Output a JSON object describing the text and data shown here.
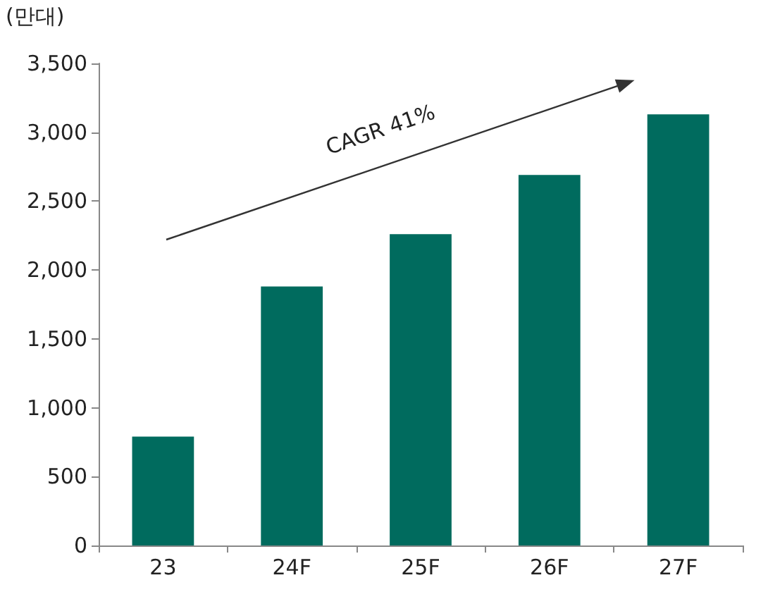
{
  "chart_data": {
    "type": "bar",
    "ylabel": "(만대)",
    "categories": [
      "23",
      "24F",
      "25F",
      "26F",
      "27F"
    ],
    "values": [
      790,
      1880,
      2260,
      2690,
      3130
    ],
    "color": "#006b5e",
    "ylim": [
      0,
      3500
    ],
    "yticks": [
      0,
      500,
      {
        "value": 1000,
        "label": "1,000"
      },
      {
        "value": 1500,
        "label": "1,500"
      },
      {
        "value": 2000,
        "label": "2,000"
      },
      {
        "value": 2500,
        "label": "2,500"
      },
      {
        "value": 3000,
        "label": "3,000"
      },
      {
        "value": 3500,
        "label": "3,500"
      }
    ],
    "grid": false,
    "annotations": [
      "CAGR 41%"
    ]
  }
}
